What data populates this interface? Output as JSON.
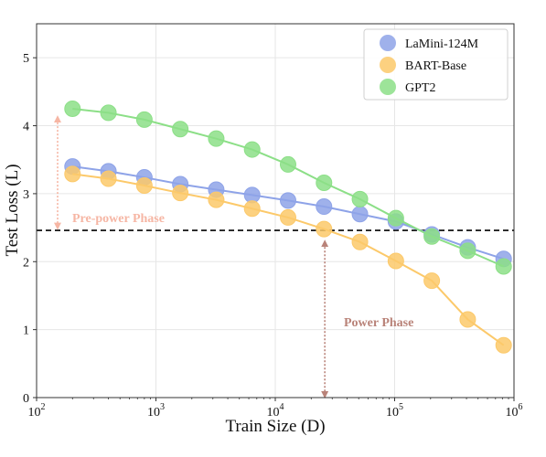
{
  "chart_data": {
    "type": "line",
    "xscale": "log",
    "xlabel": "Train Size (D)",
    "ylabel": "Test Loss (L)",
    "xlim": [
      100,
      1000000
    ],
    "ylim": [
      0,
      5.5
    ],
    "xticks": [
      {
        "value": 100,
        "base": "10",
        "exp": "2"
      },
      {
        "value": 1000,
        "base": "10",
        "exp": "3"
      },
      {
        "value": 10000,
        "base": "10",
        "exp": "4"
      },
      {
        "value": 100000,
        "base": "10",
        "exp": "5"
      },
      {
        "value": 1000000,
        "base": "10",
        "exp": "6"
      }
    ],
    "yticks": [
      "0",
      "1",
      "2",
      "3",
      "4",
      "5"
    ],
    "grid": true,
    "legend_position": "top-right",
    "x": [
      200,
      400,
      800,
      1600,
      3200,
      6400,
      12800,
      25600,
      51200,
      102400,
      204800,
      409600,
      819200
    ],
    "series": [
      {
        "name": "LaMini-124M",
        "color": "#8ea3e8",
        "values": [
          3.4,
          3.33,
          3.24,
          3.14,
          3.06,
          2.98,
          2.9,
          2.81,
          2.7,
          2.59,
          2.4,
          2.21,
          2.04
        ]
      },
      {
        "name": "BART-Base",
        "color": "#fcc96a",
        "values": [
          3.29,
          3.22,
          3.12,
          3.01,
          2.91,
          2.78,
          2.65,
          2.48,
          2.29,
          2.01,
          1.72,
          1.15,
          0.77
        ]
      },
      {
        "name": "GPT2",
        "color": "#8cdf87",
        "values": [
          4.25,
          4.19,
          4.09,
          3.95,
          3.81,
          3.65,
          3.43,
          3.16,
          2.92,
          2.64,
          2.37,
          2.16,
          1.93
        ]
      }
    ],
    "reference_line": {
      "y": 2.46,
      "style": "dashed",
      "color": "#000000"
    },
    "annotations": [
      {
        "text": "Pre-power Phase",
        "color": "#f6b6a4",
        "arrow": {
          "x": 150,
          "y_from": 4.1,
          "y_to": 2.52
        }
      },
      {
        "text": "Power Phase",
        "color": "#b98379",
        "arrow": {
          "x": 26000,
          "y_from": 2.27,
          "y_to": 0.0
        }
      }
    ]
  }
}
